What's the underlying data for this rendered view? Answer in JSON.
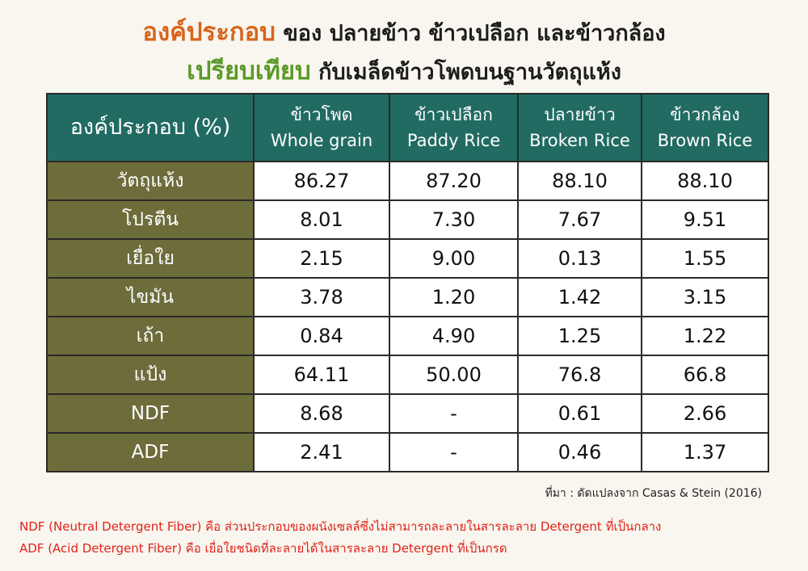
{
  "header": {
    "title_line1": {
      "highlight": "องค์ประกอบ",
      "rest": "ของ ปลายข้าว ข้าวเปลือก และข้าวกล้อง"
    },
    "title_line2": {
      "highlight": "เปรียบเทียบ",
      "rest": "กับเมล็ดข้าวโพดบนฐานวัตถุแห้ง"
    }
  },
  "table": {
    "columns": [
      {
        "th": "องค์ประกอบ (%)"
      },
      {
        "th": "ข้าวโพด",
        "en": "Whole grain"
      },
      {
        "th": "ข้าวเปลือก",
        "en": "Paddy Rice"
      },
      {
        "th": "ปลายข้าว",
        "en": "Broken Rice"
      },
      {
        "th": "ข้าวกล้อง",
        "en": "Brown Rice"
      }
    ],
    "rows": [
      [
        "วัตถุแห้ง",
        "86.27",
        "87.20",
        "88.10",
        "88.10"
      ],
      [
        "โปรตีน",
        "8.01",
        "7.30",
        "7.67",
        "9.51"
      ],
      [
        "เยื่อใย",
        "2.15",
        "9.00",
        "0.13",
        "1.55"
      ],
      [
        "ไขมัน",
        "3.78",
        "1.20",
        "1.42",
        "3.15"
      ],
      [
        "เถ้า",
        "0.84",
        "4.90",
        "1.25",
        "1.22"
      ],
      [
        "แป้ง",
        "64.11",
        "50.00",
        "76.8",
        "66.8"
      ],
      [
        "NDF",
        "8.68",
        "-",
        "0.61",
        "2.66"
      ],
      [
        "ADF",
        "2.41",
        "-",
        "0.46",
        "1.37"
      ]
    ]
  },
  "source": "ที่มา : ดัดแปลงจาก Casas & Stein (2016)",
  "notes": [
    "NDF (Neutral Detergent Fiber) คือ ส่วนประกอบของผนังเซลล์ซึ่งไม่สามารถละลายในสารละลาย Detergent ที่เป็นกลาง",
    "ADF (Acid Detergent Fiber) คือ เยื่อใยชนิดที่ละลายได้ในสารละลาย Detergent ที่เป็นกรด"
  ]
}
